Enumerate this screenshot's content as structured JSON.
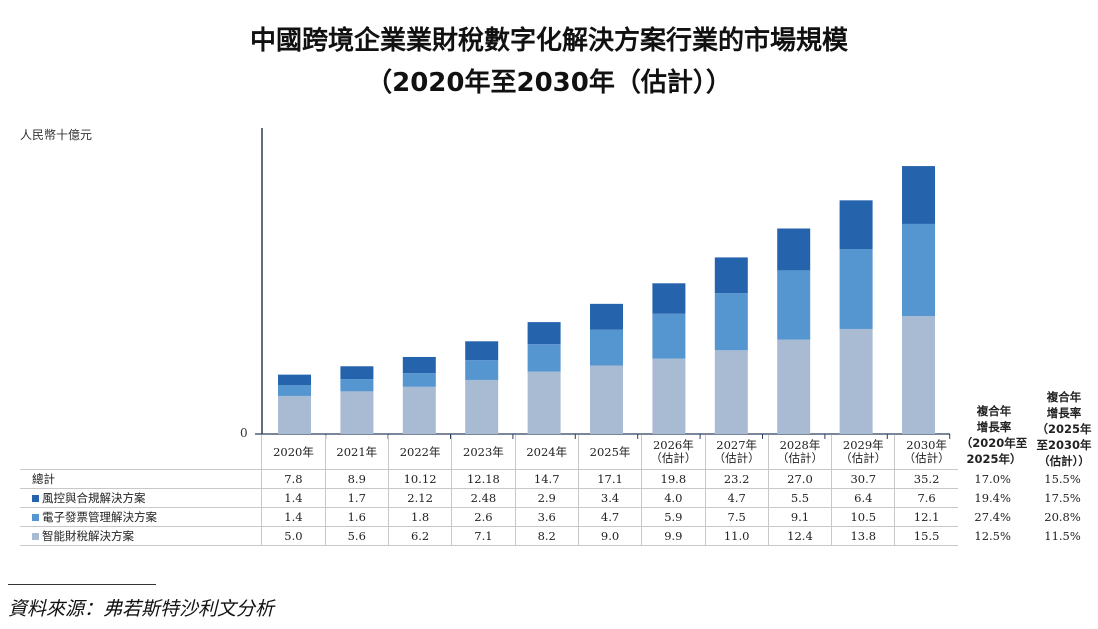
{
  "title_line1": "中國跨境企業業財稅數字化解決方案行業的市場規模",
  "title_line2": "（2020年至2030年（估計））",
  "source": "資料來源：弗若斯特沙利文分析",
  "chart_data": {
    "type": "bar",
    "stacked": true,
    "ylabel": "人民幣十億元",
    "y_zero_label": "0",
    "ylim": [
      0,
      36
    ],
    "categories": [
      "2020年",
      "2021年",
      "2022年",
      "2023年",
      "2024年",
      "2025年",
      "2026年（估計）",
      "2027年（估計）",
      "2028年（估計）",
      "2029年（估計）",
      "2030年（估計）"
    ],
    "category_lines": [
      [
        "2020年"
      ],
      [
        "2021年"
      ],
      [
        "2022年"
      ],
      [
        "2023年"
      ],
      [
        "2024年"
      ],
      [
        "2025年"
      ],
      [
        "2026年",
        "（估計）"
      ],
      [
        "2027年",
        "（估計）"
      ],
      [
        "2028年",
        "（估計）"
      ],
      [
        "2029年",
        "（估計）"
      ],
      [
        "2030年",
        "（估計）"
      ]
    ],
    "totals_label": "總計",
    "totals": [
      "7.8",
      "8.9",
      "10.12",
      "12.18",
      "14.7",
      "17.1",
      "19.8",
      "23.2",
      "27.0",
      "30.7",
      "35.2"
    ],
    "series": [
      {
        "name": "智能財稅解決方案",
        "color": "#a9bbd3",
        "values": [
          5.0,
          5.6,
          6.2,
          7.1,
          8.2,
          9.0,
          9.9,
          11.0,
          12.4,
          13.8,
          15.5
        ],
        "labels": [
          "5.0",
          "5.6",
          "6.2",
          "7.1",
          "8.2",
          "9.0",
          "9.9",
          "11.0",
          "12.4",
          "13.8",
          "15.5"
        ],
        "cagr_2020_2025": "12.5%",
        "cagr_2025_2030": "11.5%"
      },
      {
        "name": "電子發票管理解決方案",
        "color": "#5596d0",
        "values": [
          1.4,
          1.6,
          1.8,
          2.6,
          3.6,
          4.7,
          5.9,
          7.5,
          9.1,
          10.5,
          12.1
        ],
        "labels": [
          "1.4",
          "1.6",
          "1.8",
          "2.6",
          "3.6",
          "4.7",
          "5.9",
          "7.5",
          "9.1",
          "10.5",
          "12.1"
        ],
        "cagr_2020_2025": "27.4%",
        "cagr_2025_2030": "20.8%"
      },
      {
        "name": "風控與合規解決方案",
        "color": "#2563ad",
        "values": [
          1.4,
          1.7,
          2.12,
          2.48,
          2.9,
          3.4,
          4.0,
          4.7,
          5.5,
          6.4,
          7.6
        ],
        "labels": [
          "1.4",
          "1.7",
          "2.12",
          "2.48",
          "2.9",
          "3.4",
          "4.0",
          "4.7",
          "5.5",
          "6.4",
          "7.6"
        ],
        "cagr_2020_2025": "19.4%",
        "cagr_2025_2030": "17.5%"
      }
    ],
    "total_cagr_2020_2025": "17.0%",
    "total_cagr_2025_2030": "15.5%",
    "cagr_header_1": [
      "複合年",
      "增長率",
      "（2020年至",
      "2025年）"
    ],
    "cagr_header_2": [
      "複合年",
      "增長率",
      "（2025年",
      "至2030年",
      "（估計））"
    ]
  }
}
